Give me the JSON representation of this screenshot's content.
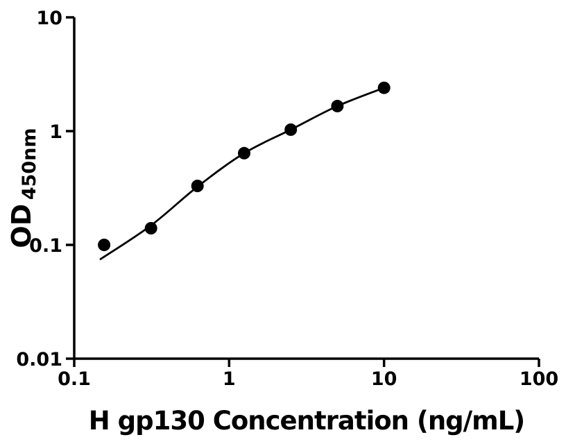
{
  "chart_data": {
    "type": "scatter",
    "title": "",
    "xlabel": "H gp130 Concentration (ng/mL)",
    "ylabel_main": "OD",
    "ylabel_sub": "450nm",
    "x_scale": "log",
    "y_scale": "log",
    "xlim": [
      0.1,
      100
    ],
    "ylim": [
      0.01,
      10
    ],
    "x_ticks": [
      0.1,
      1,
      10,
      100
    ],
    "x_tick_labels": [
      "0.1",
      "1",
      "10",
      "100"
    ],
    "y_ticks": [
      0.01,
      0.1,
      1,
      10
    ],
    "y_tick_labels": [
      "0.01",
      "0.1",
      "1",
      "10"
    ],
    "grid": false,
    "legend": null,
    "series": [
      {
        "name": "standard-curve-points",
        "x": [
          0.156,
          0.313,
          0.625,
          1.25,
          2.5,
          5,
          10
        ],
        "y": [
          0.1,
          0.14,
          0.33,
          0.64,
          1.03,
          1.66,
          2.4
        ]
      }
    ],
    "fit_curve": [
      [
        0.148,
        0.075
      ],
      [
        0.3125,
        0.148
      ],
      [
        0.625,
        0.325
      ],
      [
        1.25,
        0.64
      ],
      [
        2.5,
        1.03
      ],
      [
        5,
        1.66
      ],
      [
        10,
        2.4
      ]
    ],
    "marker": {
      "shape": "circle",
      "color": "#000000",
      "radius_px": 9
    },
    "line_color": "#000000",
    "axis_color": "#000000",
    "background_color": "#ffffff"
  }
}
